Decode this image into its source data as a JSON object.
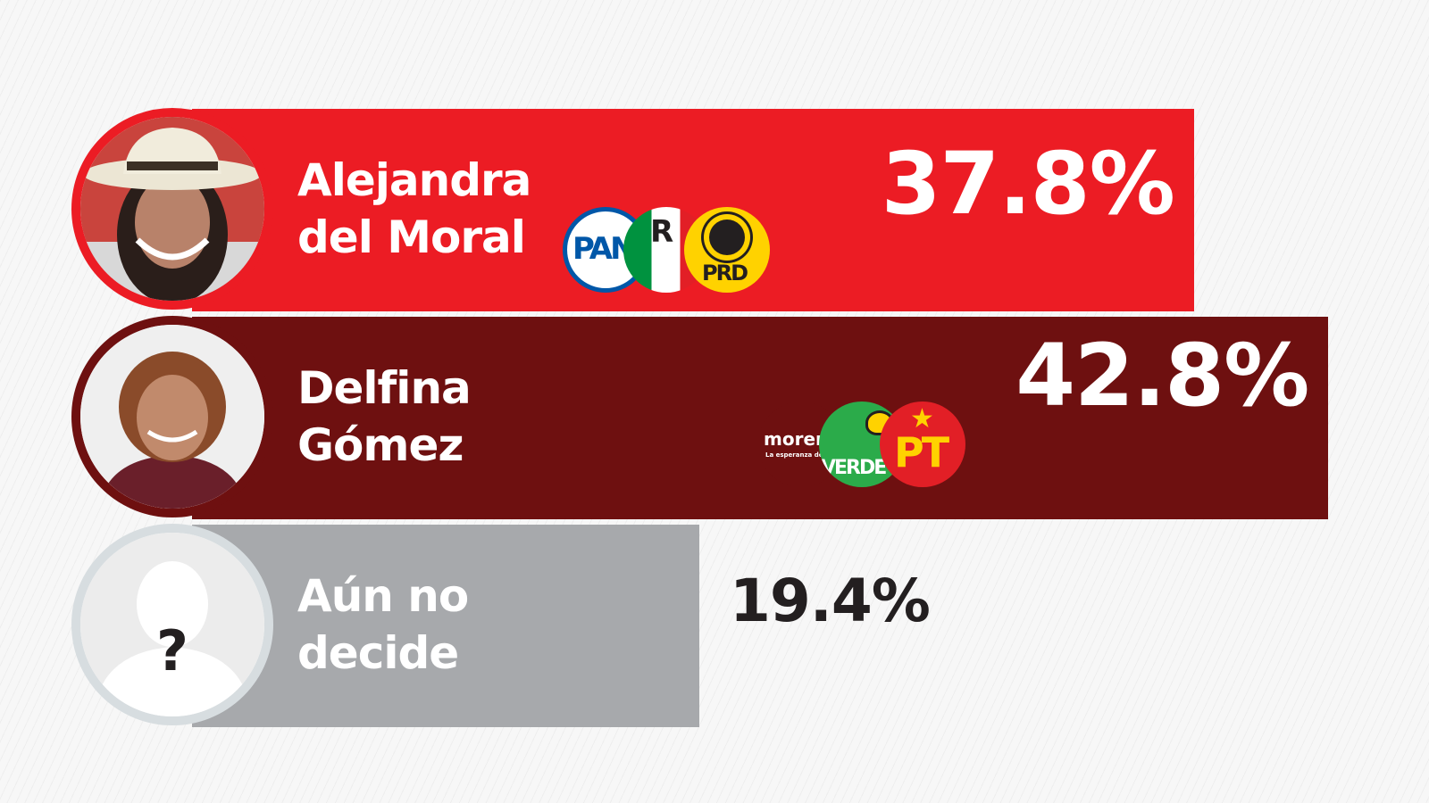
{
  "chart_data": {
    "type": "bar",
    "orientation": "horizontal",
    "categories": [
      "Alejandra del Moral",
      "Delfina Gómez",
      "Aún no decide"
    ],
    "name_lines": [
      [
        "Alejandra",
        "del Moral"
      ],
      [
        "Delfina",
        "Gómez"
      ],
      [
        "Aún no",
        "decide"
      ]
    ],
    "values": [
      37.8,
      42.8,
      19.4
    ],
    "value_labels": [
      "37.8%",
      "42.8%",
      "19.4%"
    ],
    "unit": "%",
    "bar_colors": [
      "#ec1c24",
      "#6e1010",
      "#a7a9ac"
    ],
    "label_colors": [
      "#ffffff",
      "#ffffff",
      "#231f20"
    ],
    "title": "",
    "xlabel": "",
    "ylabel": "",
    "grid": false,
    "legend": "none"
  },
  "candidates": [
    {
      "avatar_icon": "candidate-photo-icon",
      "ring_color": "#ec1c24",
      "coalition_logos": [
        {
          "icon": "pan-logo-icon",
          "text": "PAN",
          "bg": "#ffffff",
          "fg": "#0057a8"
        },
        {
          "icon": "pri-logo-icon",
          "text": "R",
          "bg": "#ffffff",
          "fg": "#231f20"
        },
        {
          "icon": "prd-logo-icon",
          "text": "PRD",
          "bg": "#ffd200",
          "fg": "#231f20"
        }
      ]
    },
    {
      "avatar_icon": "candidate-photo-icon",
      "ring_color": "#6e1010",
      "coalition_logos": [
        {
          "icon": "morena-logo-icon",
          "text": "morena",
          "subtext": "La esperanza de México",
          "bg": "#6e1010",
          "fg": "#ffffff"
        },
        {
          "icon": "verde-logo-icon",
          "text": "VERDE",
          "bg": "#2bab4a",
          "fg": "#ffffff"
        },
        {
          "icon": "pt-logo-icon",
          "text": "PT",
          "bg": "#e21f26",
          "fg": "#ffd200"
        }
      ]
    },
    {
      "avatar_icon": "unknown-person-icon",
      "ring_color": "#d7dde0",
      "question_mark": "?",
      "coalition_logos": []
    }
  ]
}
